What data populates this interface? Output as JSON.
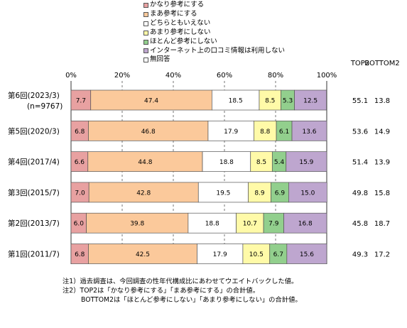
{
  "chart_data": {
    "type": "bar",
    "orientation": "horizontal",
    "stacked": true,
    "categories": [
      {
        "label": "第6回(2023/3)",
        "sublabel": "(n=9767)"
      },
      {
        "label": "第5回(2020/3)"
      },
      {
        "label": "第4回(2017/4)"
      },
      {
        "label": "第3回(2015/7)"
      },
      {
        "label": "第2回(2013/7)"
      },
      {
        "label": "第1回(2011/7)"
      }
    ],
    "series": [
      {
        "name": "かなり参考にする",
        "color": "#e8a1a1",
        "values": [
          7.7,
          6.8,
          6.6,
          7.0,
          6.0,
          6.8
        ]
      },
      {
        "name": "まあ参考にする",
        "color": "#fbc99b",
        "values": [
          47.4,
          46.8,
          44.8,
          42.8,
          39.8,
          42.5
        ]
      },
      {
        "name": "どちらともいえない",
        "color": "#ffffff",
        "values": [
          18.5,
          17.9,
          18.8,
          19.5,
          18.8,
          17.9
        ]
      },
      {
        "name": "あまり参考にしない",
        "color": "#fffaa8",
        "values": [
          8.5,
          8.8,
          8.5,
          8.9,
          10.7,
          10.5
        ]
      },
      {
        "name": "ほとんど参考にしない",
        "color": "#92cf8d",
        "values": [
          5.3,
          6.1,
          5.4,
          6.9,
          7.9,
          6.7
        ]
      },
      {
        "name": "インターネット上の口コミ情報は利用しない",
        "color": "#bea6cf",
        "values": [
          12.5,
          13.6,
          15.9,
          15.0,
          16.8,
          15.6
        ]
      },
      {
        "name": "無回答",
        "color": "#ffffff",
        "values": [
          0.0,
          0.0,
          0.0,
          0.0,
          0.0,
          0.0
        ]
      }
    ],
    "xlim": [
      0,
      100
    ],
    "x_ticks": [
      "0%",
      "20%",
      "40%",
      "60%",
      "80%",
      "100%"
    ],
    "grid": "dashed-vertical",
    "legend_placement": "top",
    "extra_columns": [
      {
        "header": "TOP2",
        "values": [
          "55.1",
          "53.6",
          "51.4",
          "49.8",
          "45.8",
          "49.3"
        ]
      },
      {
        "header": "BOTTOM2",
        "values": [
          "13.8",
          "14.9",
          "13.9",
          "15.8",
          "18.7",
          "17.2"
        ]
      }
    ]
  },
  "notes": [
    "注1）過去調査は、今回調査の性年代構成比にあわせてウエイトバックした値。",
    "注2）TOP2は「かなり参考にする」「まあ参考にする」の合計値。",
    "BOTTOM2は「ほとんど参考にしない」「あまり参考にしない」の合計値。"
  ]
}
